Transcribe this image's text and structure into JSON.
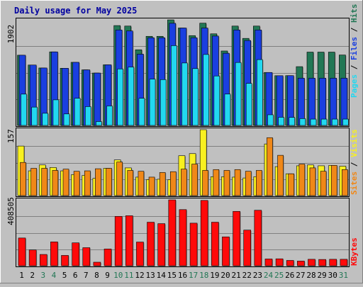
{
  "chart_data": [
    {
      "type": "bar",
      "title": "Daily usage for May 2025",
      "categories": [
        "1",
        "2",
        "3",
        "4",
        "5",
        "6",
        "7",
        "8",
        "9",
        "10",
        "11",
        "12",
        "13",
        "14",
        "15",
        "16",
        "17",
        "18",
        "19",
        "20",
        "21",
        "22",
        "23",
        "24",
        "25",
        "26",
        "27",
        "28",
        "29",
        "30",
        "31"
      ],
      "weekend_days": [
        "3",
        "4",
        "10",
        "11",
        "17",
        "18",
        "24",
        "25",
        "31"
      ],
      "y_max_label": "1902",
      "ylim": [
        0,
        1902
      ],
      "series": [
        {
          "name": "Hits",
          "color": "#227755",
          "values": [
            1265,
            1088,
            1035,
            1325,
            1030,
            1137,
            1001,
            944,
            1092,
            1799,
            1790,
            1363,
            1605,
            1605,
            1902,
            1755,
            1618,
            1842,
            1650,
            1341,
            1790,
            1568,
            1790,
            954,
            896,
            897,
            1059,
            1321,
            1321,
            1321,
            1269
          ]
        },
        {
          "name": "Files",
          "color": "#1a3fe0",
          "values": [
            1265,
            1088,
            1035,
            1325,
            1030,
            1137,
            1001,
            944,
            1092,
            1720,
            1702,
            1284,
            1580,
            1580,
            1840,
            1755,
            1580,
            1755,
            1610,
            1300,
            1720,
            1530,
            1720,
            954,
            896,
            897,
            852,
            852,
            852,
            852,
            852
          ]
        },
        {
          "name": "Pages",
          "color": "#22d8f0",
          "values": [
            564,
            330,
            219,
            461,
            207,
            490,
            339,
            70,
            351,
            1018,
            1052,
            489,
            835,
            826,
            1437,
            1125,
            1024,
            1278,
            891,
            565,
            1134,
            757,
            1186,
            192,
            147,
            145,
            123,
            114,
            114,
            114,
            114
          ]
        }
      ]
    },
    {
      "type": "bar",
      "y_max_label": "157",
      "ylim": [
        0,
        157
      ],
      "series": [
        {
          "name": "Visits",
          "color": "#f8f020",
          "values": [
            118,
            59,
            73,
            67,
            59,
            50,
            48,
            41,
            65,
            85,
            66,
            44,
            38,
            39,
            38,
            95,
            100,
            157,
            45,
            45,
            44,
            42,
            45,
            123,
            69,
            52,
            71,
            73,
            71,
            72,
            70
          ]
        },
        {
          "name": "Sites",
          "color": "#f08818",
          "values": [
            79,
            65,
            65,
            60,
            63,
            58,
            59,
            64,
            65,
            80,
            60,
            58,
            44,
            55,
            57,
            63,
            75,
            60,
            62,
            60,
            62,
            58,
            60,
            138,
            96,
            52,
            75,
            66,
            58,
            72,
            62
          ]
        }
      ]
    },
    {
      "type": "bar",
      "y_max_label": "408505",
      "ylim": [
        0,
        408505
      ],
      "series": [
        {
          "name": "KBytes",
          "color": "#ff0a0a",
          "values": [
            172000,
            98000,
            70000,
            148000,
            64000,
            142000,
            112000,
            22000,
            104000,
            306000,
            310000,
            147000,
            270000,
            261000,
            408505,
            348000,
            264000,
            405000,
            270000,
            179000,
            337000,
            221000,
            344000,
            42000,
            43000,
            33000,
            29000,
            40000,
            39000,
            40000,
            40000
          ]
        }
      ]
    }
  ]
}
